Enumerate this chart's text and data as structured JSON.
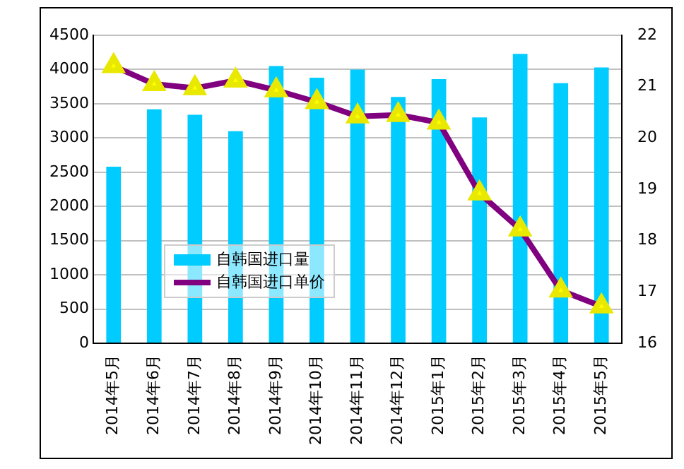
{
  "chart_data": {
    "type": "bar",
    "categories": [
      "2014年5月",
      "2014年6月",
      "2014年7月",
      "2014年8月",
      "2014年9月",
      "2014年10月",
      "2014年11月",
      "2014年12月",
      "2015年1月",
      "2015年2月",
      "2015年3月",
      "2015年4月",
      "2015年5月"
    ],
    "series": [
      {
        "name": "自韩国进口量",
        "color": "#00ccff",
        "values": [
          2580,
          3420,
          3340,
          3100,
          4050,
          3880,
          4000,
          3600,
          3860,
          3300,
          4230,
          3800,
          4030
        ]
      },
      {
        "name": "自韩国进口单价",
        "type": "line",
        "axis": "y2",
        "color": "#800080",
        "marker": "triangle",
        "values": [
          21.4,
          21.05,
          20.97,
          21.12,
          20.93,
          20.7,
          20.42,
          20.45,
          20.3,
          18.92,
          18.22,
          17.03,
          16.72
        ]
      }
    ],
    "ylim": [
      0,
      4500
    ],
    "yticks": [
      0,
      500,
      1000,
      1500,
      2000,
      2500,
      3000,
      3500,
      4000,
      4500
    ],
    "y2lim": [
      16,
      22
    ],
    "y2ticks": [
      16,
      17,
      18,
      19,
      20,
      21,
      22
    ],
    "grid": "y",
    "legend": "bottom left"
  }
}
